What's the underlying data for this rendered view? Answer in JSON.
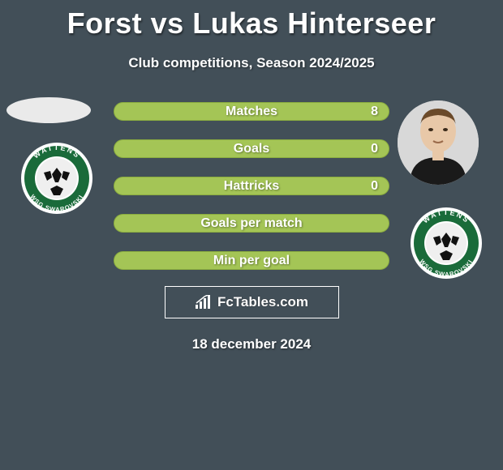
{
  "title": "Forst vs Lukas Hinterseer",
  "subtitle": "Club competitions, Season 2024/2025",
  "date": "18 december 2024",
  "watermark": "FcTables.com",
  "colors": {
    "bg": "#424f58",
    "bar": "#a4c556",
    "bar_border": "#8bad3f",
    "text": "#ffffff"
  },
  "stats": [
    {
      "label": "Matches",
      "right_value": "8",
      "right_width_pct": 0
    },
    {
      "label": "Goals",
      "right_value": "0",
      "right_width_pct": 0
    },
    {
      "label": "Hattricks",
      "right_value": "0",
      "right_width_pct": 0
    },
    {
      "label": "Goals per match",
      "right_value": "",
      "right_width_pct": 0
    },
    {
      "label": "Min per goal",
      "right_value": "",
      "right_width_pct": 0
    }
  ],
  "club": {
    "name": "WSG Swarovski Wattens",
    "ring_text_top": "WATTENS",
    "ring_text_bottom": "WSG SWAROVSKI",
    "ring_outer": "#ffffff",
    "ring_green": "#1a6b3a",
    "ball_white": "#efefef",
    "ball_black": "#111111"
  }
}
